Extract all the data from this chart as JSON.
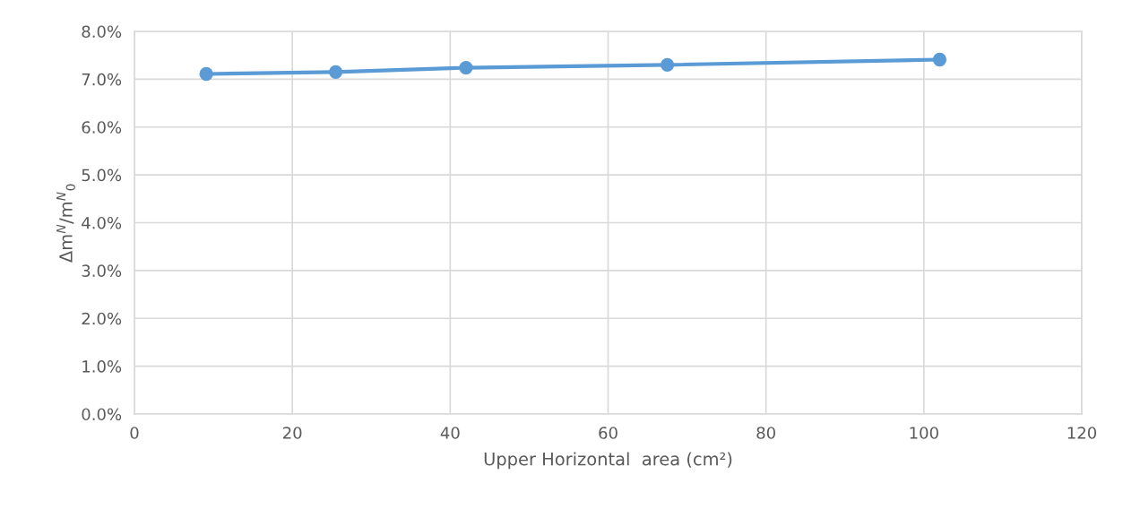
{
  "chart_data": {
    "type": "line",
    "xlabel": "Upper Horizontal  area (cm²)",
    "ylabel": "Δm$^{N}$/m$^{N}$$_{0}$",
    "x": [
      9.1,
      25.5,
      42,
      67.5,
      102
    ],
    "series": [
      {
        "color": "#5b9bd5",
        "values": [
          7.11,
          7.15,
          7.24,
          7.3,
          7.41
        ]
      }
    ],
    "xlim": [
      0,
      120
    ],
    "xticks": [
      0,
      20,
      40,
      60,
      80,
      100,
      120
    ],
    "ylim": [
      0,
      8
    ],
    "yticks": [
      {
        "value": 0,
        "label": "0.0%"
      },
      {
        "value": 1,
        "label": "1.0%"
      },
      {
        "value": 2,
        "label": "2.0%"
      },
      {
        "value": 3,
        "label": "3.0%"
      },
      {
        "value": 4,
        "label": "4.0%"
      },
      {
        "value": 5,
        "label": "5.0%"
      },
      {
        "value": 6,
        "label": "6.0%"
      },
      {
        "value": 7,
        "label": "7.0%"
      },
      {
        "value": 8,
        "label": "8.0%"
      }
    ],
    "grid": true,
    "marker": "circle",
    "line_style": "solid"
  }
}
